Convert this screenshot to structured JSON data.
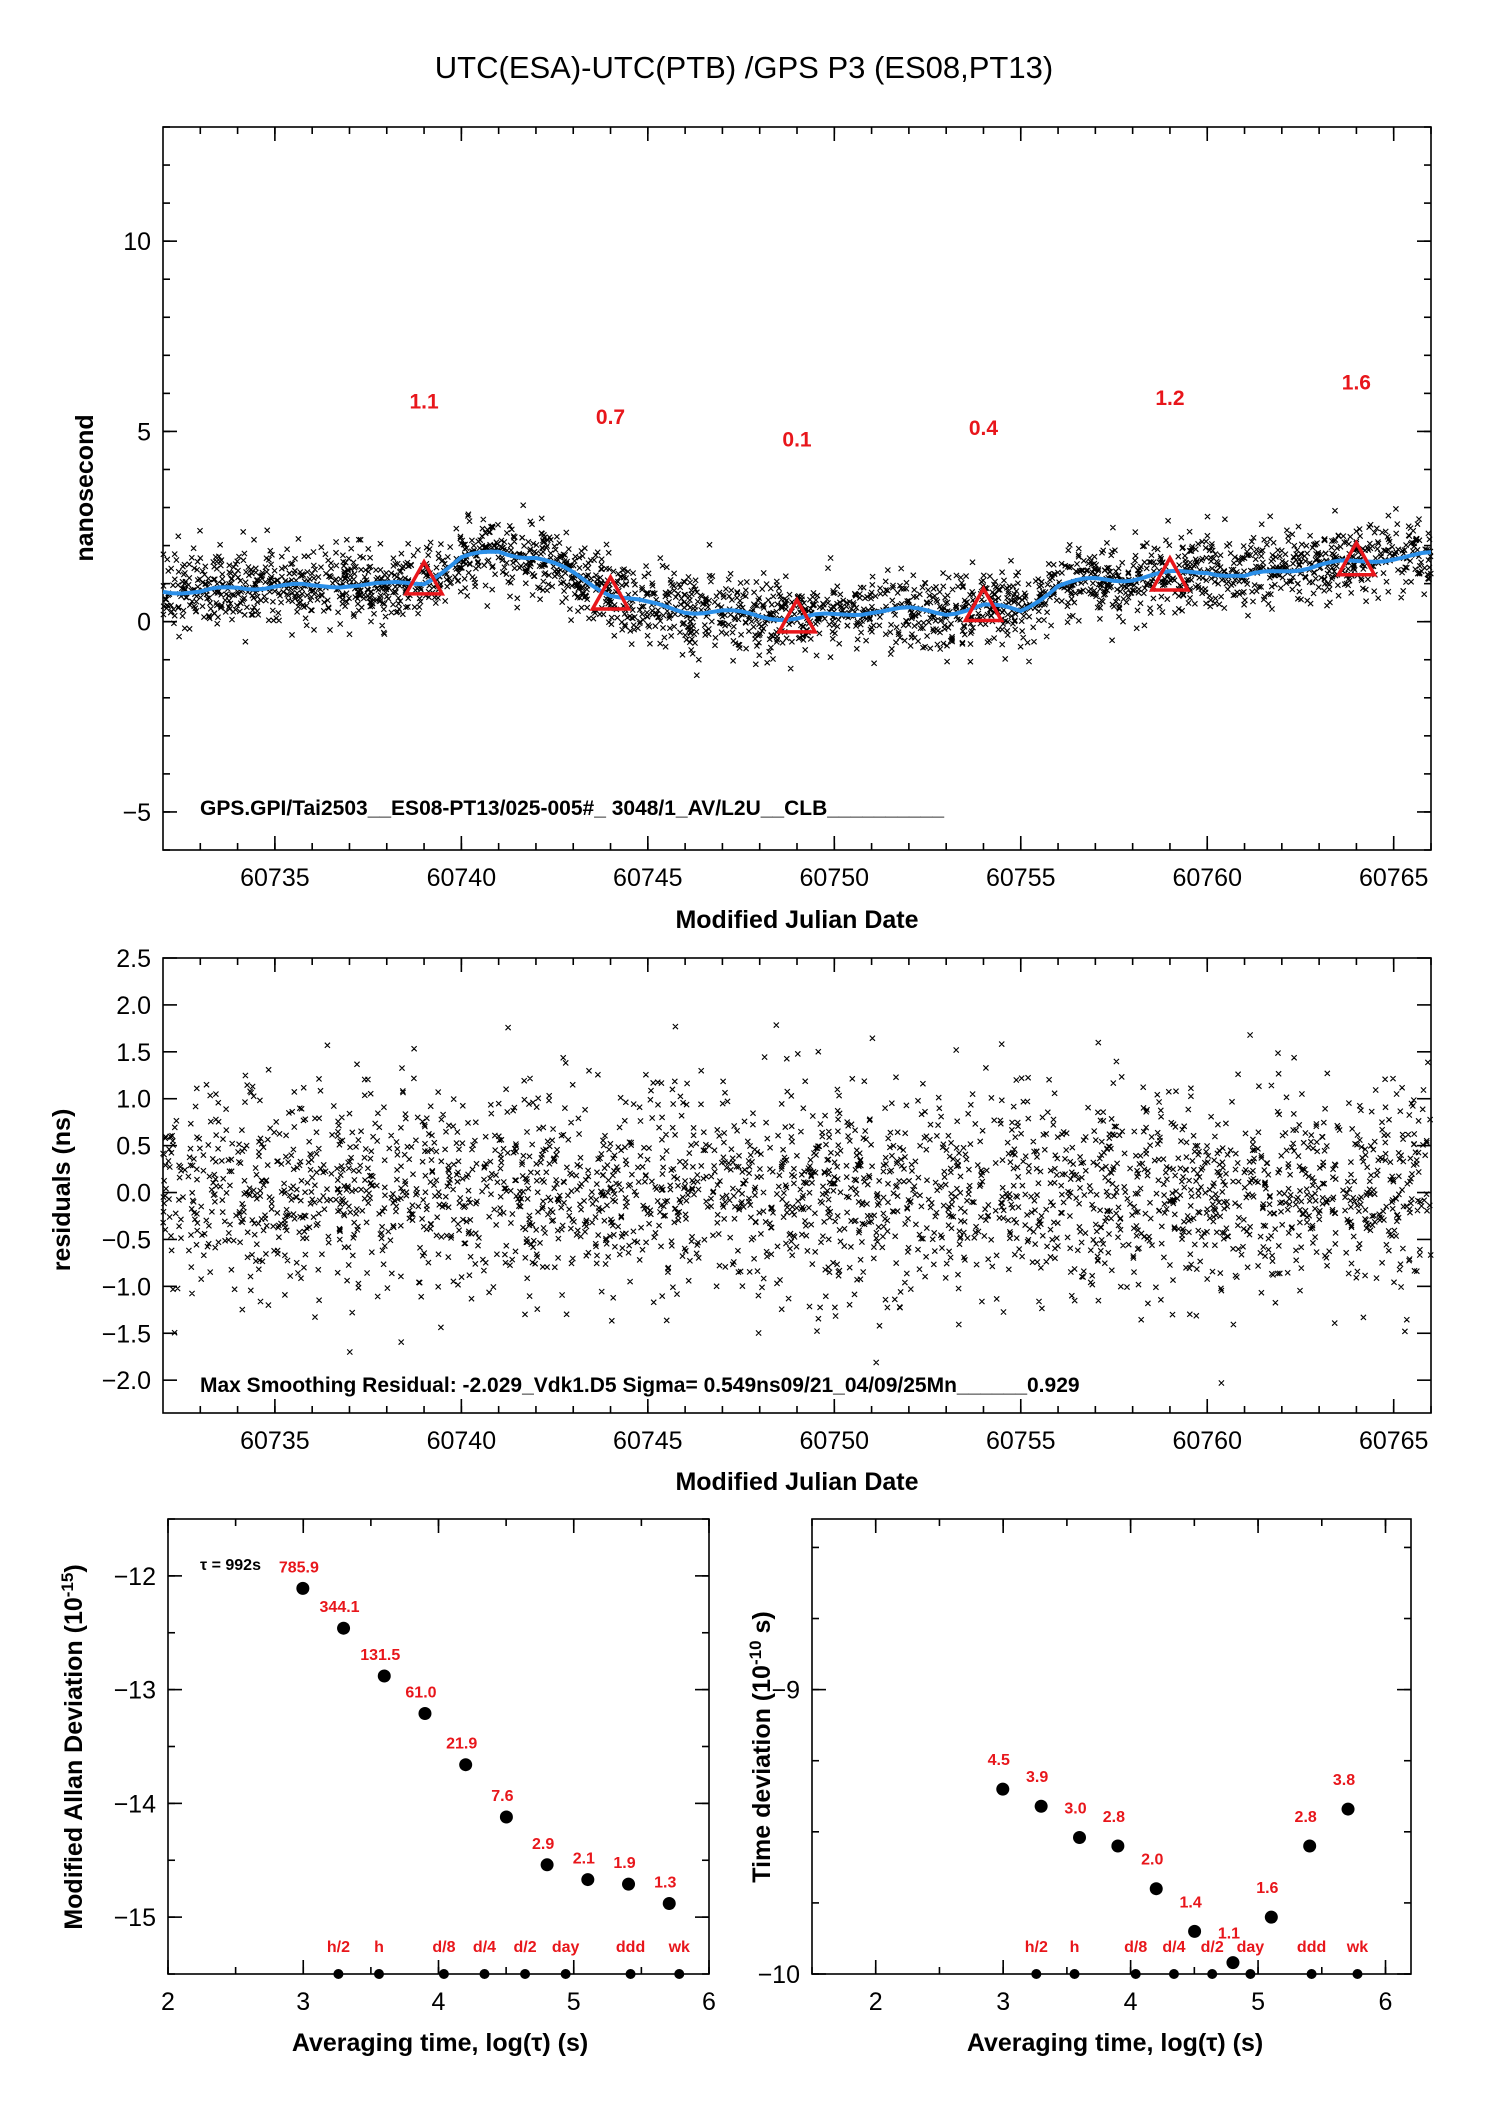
{
  "title": "UTC(ESA)-UTC(PTB)  /GPS  P3  (ES08,PT13)",
  "colors": {
    "smooth_line": "#2b8fe8",
    "highlight": "#e8161b",
    "points": "#000000"
  },
  "chart_data": [
    {
      "id": "main",
      "type": "scatter",
      "ylabel": "nanosecond",
      "xlabel": "Modified Julian Date",
      "xlim": [
        60732,
        60766
      ],
      "ylim": [
        -6,
        13
      ],
      "xticks": [
        60735,
        60740,
        60745,
        60750,
        60755,
        60760,
        60765
      ],
      "yticks": [
        -5,
        0,
        5,
        10
      ],
      "annotation": "GPS.GPI/Tai2503__ES08-PT13/025-005#_  3048/1_AV/L2U__CLB__________",
      "smooth_line": {
        "x": [
          60732,
          60733,
          60734,
          60735,
          60736,
          60737,
          60738,
          60739,
          60740,
          60741,
          60742,
          60743,
          60744,
          60745,
          60746,
          60747,
          60748,
          60749,
          60750,
          60751,
          60752,
          60753,
          60754,
          60755,
          60756,
          60757,
          60758,
          60759,
          60760,
          60761,
          60762,
          60763,
          60764,
          60765,
          60766
        ],
        "y": [
          0.85,
          0.75,
          0.9,
          0.95,
          0.9,
          1.0,
          0.95,
          1.05,
          1.65,
          1.85,
          1.7,
          1.25,
          0.75,
          0.45,
          0.3,
          0.25,
          0.15,
          0.1,
          0.15,
          0.3,
          0.3,
          0.25,
          0.4,
          0.3,
          0.95,
          1.1,
          1.15,
          1.25,
          1.35,
          1.15,
          1.35,
          1.5,
          1.55,
          1.7,
          1.75
        ]
      },
      "markers": [
        {
          "x": 60739,
          "y": 1.1,
          "label": "1.1"
        },
        {
          "x": 60744,
          "y": 0.7,
          "label": "0.7"
        },
        {
          "x": 60749,
          "y": 0.1,
          "label": "0.1"
        },
        {
          "x": 60754,
          "y": 0.4,
          "label": "0.4"
        },
        {
          "x": 60759,
          "y": 1.2,
          "label": "1.2"
        },
        {
          "x": 60764,
          "y": 1.6,
          "label": "1.6"
        }
      ],
      "scatter_description": "about 3000 measurements scattered around the smoothed curve, spread about 0.55 ns"
    },
    {
      "id": "residuals",
      "type": "scatter",
      "ylabel": "residuals (ns)",
      "xlabel": "Modified Julian Date",
      "xlim": [
        60732,
        60766
      ],
      "ylim": [
        -2.35,
        2.5
      ],
      "xticks": [
        60735,
        60740,
        60745,
        60750,
        60755,
        60760,
        60765
      ],
      "yticks": [
        -2.0,
        -1.5,
        -1.0,
        -0.5,
        0.0,
        0.5,
        1.0,
        1.5,
        2.0,
        2.5
      ],
      "yticklabels": [
        "−2.0",
        "−1.5",
        "−1.0",
        "−0.5",
        "0.0",
        "0.5",
        "1.0",
        "1.5",
        "2.0",
        "2.5"
      ],
      "annotation": "Max Smoothing Residual: -2.029_Vdk1.D5  Sigma= 0.549ns09/21_04/09/25Mn______0.929",
      "sigma": 0.549
    },
    {
      "id": "mdev",
      "type": "scatter",
      "ylabel": "Modified Allan Deviation (10",
      "ylabel_sup": "-15",
      "ylabel_end": ")",
      "xlabel": "Averaging time, log(τ) (s)",
      "xlim": [
        2,
        6
      ],
      "ylim": [
        -15.5,
        -11.5
      ],
      "xticks": [
        2,
        3,
        4,
        5,
        6
      ],
      "yticks": [
        -15,
        -14,
        -13,
        -12
      ],
      "yticklabels": [
        "−15",
        "−14",
        "−13",
        "−12"
      ],
      "tau_note": "τ = 992s",
      "points": [
        {
          "x": 2.997,
          "y": -12.11,
          "label": "785.9"
        },
        {
          "x": 3.298,
          "y": -12.46,
          "label": "344.1"
        },
        {
          "x": 3.599,
          "y": -12.88,
          "label": "131.5"
        },
        {
          "x": 3.9,
          "y": -13.21,
          "label": "61.0"
        },
        {
          "x": 4.201,
          "y": -13.66,
          "label": "21.9"
        },
        {
          "x": 4.502,
          "y": -14.12,
          "label": "7.6"
        },
        {
          "x": 4.803,
          "y": -14.54,
          "label": "2.9"
        },
        {
          "x": 5.104,
          "y": -14.67,
          "label": "2.1"
        },
        {
          "x": 5.405,
          "y": -14.71,
          "label": "1.9"
        },
        {
          "x": 5.706,
          "y": -14.88,
          "label": "1.3"
        }
      ],
      "bottom_marks": [
        {
          "x": 3.26,
          "label": "h/2"
        },
        {
          "x": 3.56,
          "label": "h"
        },
        {
          "x": 4.04,
          "label": "d/8"
        },
        {
          "x": 4.34,
          "label": "d/4"
        },
        {
          "x": 4.64,
          "label": "d/2"
        },
        {
          "x": 4.94,
          "label": "day"
        },
        {
          "x": 5.42,
          "label": "ddd"
        },
        {
          "x": 5.78,
          "label": "wk"
        }
      ]
    },
    {
      "id": "tdev",
      "type": "scatter",
      "ylabel": "Time deviation (10",
      "ylabel_sup": "-10",
      "ylabel_end": " s)",
      "xlabel": "Averaging time, log(τ) (s)",
      "xlim": [
        1.5,
        6.2
      ],
      "ylim": [
        -10,
        -8.4
      ],
      "xticks": [
        2,
        3,
        4,
        5,
        6
      ],
      "yticks": [
        -10,
        -9
      ],
      "yticklabels": [
        "−10",
        "−9"
      ],
      "points": [
        {
          "x": 2.997,
          "y": -9.35,
          "label": "4.5"
        },
        {
          "x": 3.298,
          "y": -9.41,
          "label": "3.9"
        },
        {
          "x": 3.599,
          "y": -9.52,
          "label": "3.0"
        },
        {
          "x": 3.9,
          "y": -9.55,
          "label": "2.8"
        },
        {
          "x": 4.201,
          "y": -9.7,
          "label": "2.0"
        },
        {
          "x": 4.502,
          "y": -9.85,
          "label": "1.4"
        },
        {
          "x": 4.803,
          "y": -9.96,
          "label": "1.1"
        },
        {
          "x": 5.104,
          "y": -9.8,
          "label": "1.6"
        },
        {
          "x": 5.405,
          "y": -9.55,
          "label": "2.8"
        },
        {
          "x": 5.706,
          "y": -9.42,
          "label": "3.8"
        }
      ],
      "bottom_marks": [
        {
          "x": 3.26,
          "label": "h/2"
        },
        {
          "x": 3.56,
          "label": "h"
        },
        {
          "x": 4.04,
          "label": "d/8"
        },
        {
          "x": 4.34,
          "label": "d/4"
        },
        {
          "x": 4.64,
          "label": "d/2"
        },
        {
          "x": 4.94,
          "label": "day"
        },
        {
          "x": 5.42,
          "label": "ddd"
        },
        {
          "x": 5.78,
          "label": "wk"
        }
      ]
    }
  ]
}
